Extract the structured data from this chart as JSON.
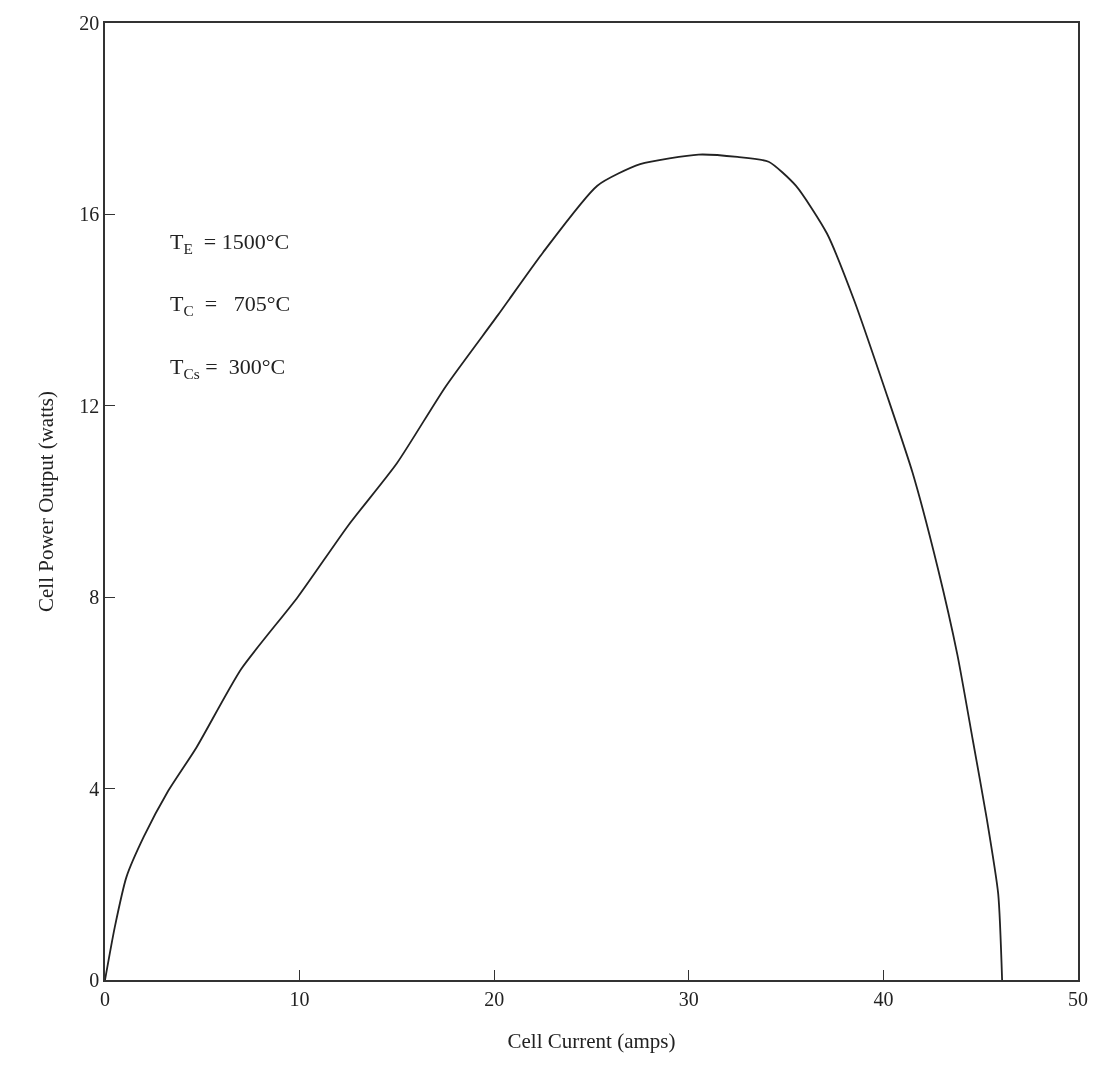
{
  "chart_data": {
    "type": "line",
    "xlabel": "Cell Current (amps)",
    "ylabel": "Cell Power Output (watts)",
    "x": [
      0,
      0.5,
      1.1,
      2,
      3.2,
      4.7,
      7,
      9.9,
      12.5,
      15,
      17.5,
      20.2,
      22.5,
      25.3,
      27.5,
      30.5,
      32.5,
      34.1,
      35.5,
      37.1,
      38.5,
      40.2,
      41.5,
      42.8,
      43.8,
      44.6,
      45.3,
      45.9,
      46.1
    ],
    "series": [
      {
        "color": "#222222",
        "values": [
          0,
          1.1,
          2.15,
          3.0,
          3.92,
          4.86,
          6.5,
          8.0,
          9.5,
          10.8,
          12.4,
          13.9,
          15.2,
          16.6,
          17.05,
          17.25,
          17.2,
          17.1,
          16.6,
          15.6,
          14.2,
          12.2,
          10.6,
          8.6,
          6.8,
          5.0,
          3.4,
          1.8,
          0
        ]
      }
    ],
    "xlim": [
      0,
      50
    ],
    "ylim": [
      0,
      20
    ],
    "xticks": [
      0,
      10,
      20,
      30,
      40,
      50
    ],
    "yticks": [
      0,
      4,
      8,
      12,
      16,
      20
    ],
    "marker": "none",
    "line_style": "solid",
    "annotations": [
      {
        "text": "T$_{E}$  = 1500°C"
      },
      {
        "text": "T$_{C}$  =   705°C"
      },
      {
        "text": "T$_{Cs}$ =  300°C"
      }
    ]
  }
}
